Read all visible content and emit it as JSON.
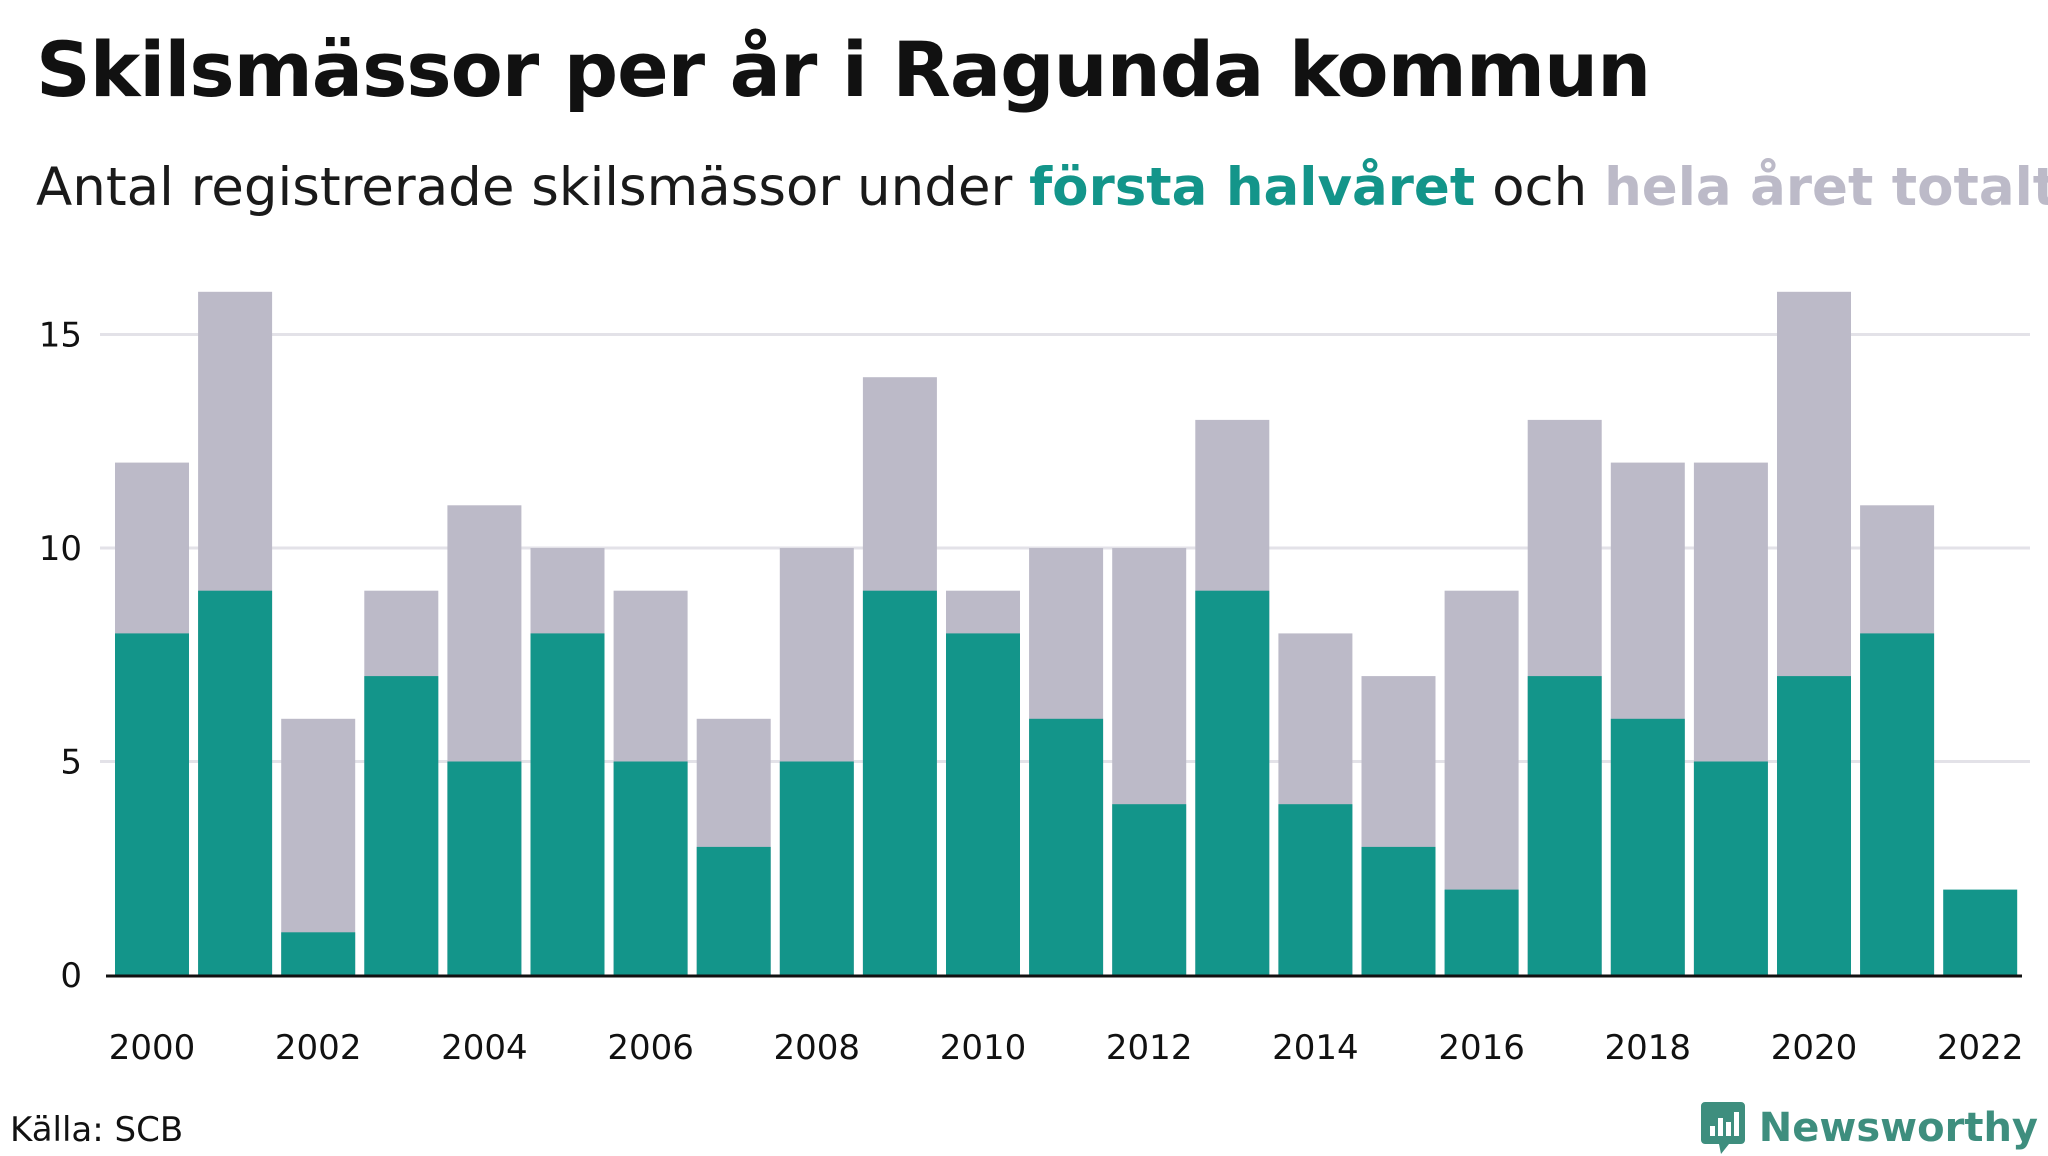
{
  "header": {
    "title": "Skilsmässor per år i Ragunda kommun",
    "subtitle_prefix": "Antal registrerade skilsmässor under ",
    "subtitle_first": "första halvåret",
    "subtitle_middle": " och ",
    "subtitle_total": "hela året totalt",
    "subtitle_suffix": "."
  },
  "footer": {
    "source": "Källa: SCB",
    "brand": "Newsworthy"
  },
  "colors": {
    "first_half": "#13958a",
    "full_year": "#bcbac8",
    "grid": "#e3e2e8",
    "axis": "#111111"
  },
  "chart_data": {
    "type": "bar",
    "stacked": "overlay",
    "categories": [
      "2000",
      "2001",
      "2002",
      "2003",
      "2004",
      "2005",
      "2006",
      "2007",
      "2008",
      "2009",
      "2010",
      "2011",
      "2012",
      "2013",
      "2014",
      "2015",
      "2016",
      "2017",
      "2018",
      "2019",
      "2020",
      "2021",
      "2022"
    ],
    "x_tick_labels": [
      "2000",
      "2002",
      "2004",
      "2006",
      "2008",
      "2010",
      "2012",
      "2014",
      "2016",
      "2018",
      "2020",
      "2022"
    ],
    "series": [
      {
        "name": "hela året totalt",
        "values": [
          12,
          16,
          6,
          9,
          11,
          10,
          9,
          6,
          10,
          14,
          9,
          10,
          10,
          13,
          8,
          7,
          9,
          13,
          12,
          12,
          16,
          11,
          null
        ]
      },
      {
        "name": "första halvåret",
        "values": [
          8,
          9,
          1,
          7,
          5,
          8,
          5,
          3,
          5,
          9,
          8,
          6,
          4,
          9,
          4,
          3,
          2,
          7,
          6,
          5,
          7,
          8,
          2
        ]
      }
    ],
    "y_ticks": [
      0,
      5,
      10,
      15
    ],
    "ylim": [
      0,
      16
    ],
    "grid": true,
    "legend": "in subtitle"
  }
}
